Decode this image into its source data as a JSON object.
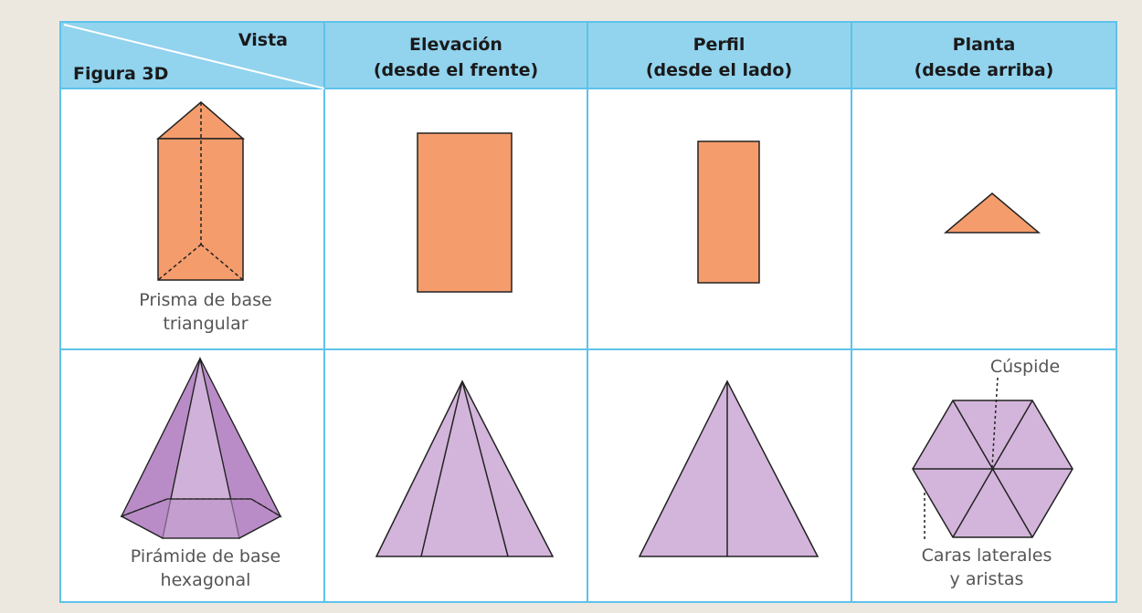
{
  "table": {
    "header": {
      "corner_top": "Vista",
      "corner_bottom": "Figura 3D",
      "columns": [
        [
          "Elevación",
          "(desde el frente)"
        ],
        [
          "Perfil",
          "(desde el lado)"
        ],
        [
          "Planta",
          "(desde arriba)"
        ]
      ]
    },
    "rows": [
      {
        "figure_label": [
          "Prisma de base",
          "triangular"
        ]
      },
      {
        "figure_label": [
          "Pirámide de base",
          "hexagonal"
        ],
        "annotations": {
          "apex": "Cúspide",
          "faces": [
            "Caras laterales",
            "y aristas"
          ]
        }
      }
    ]
  }
}
